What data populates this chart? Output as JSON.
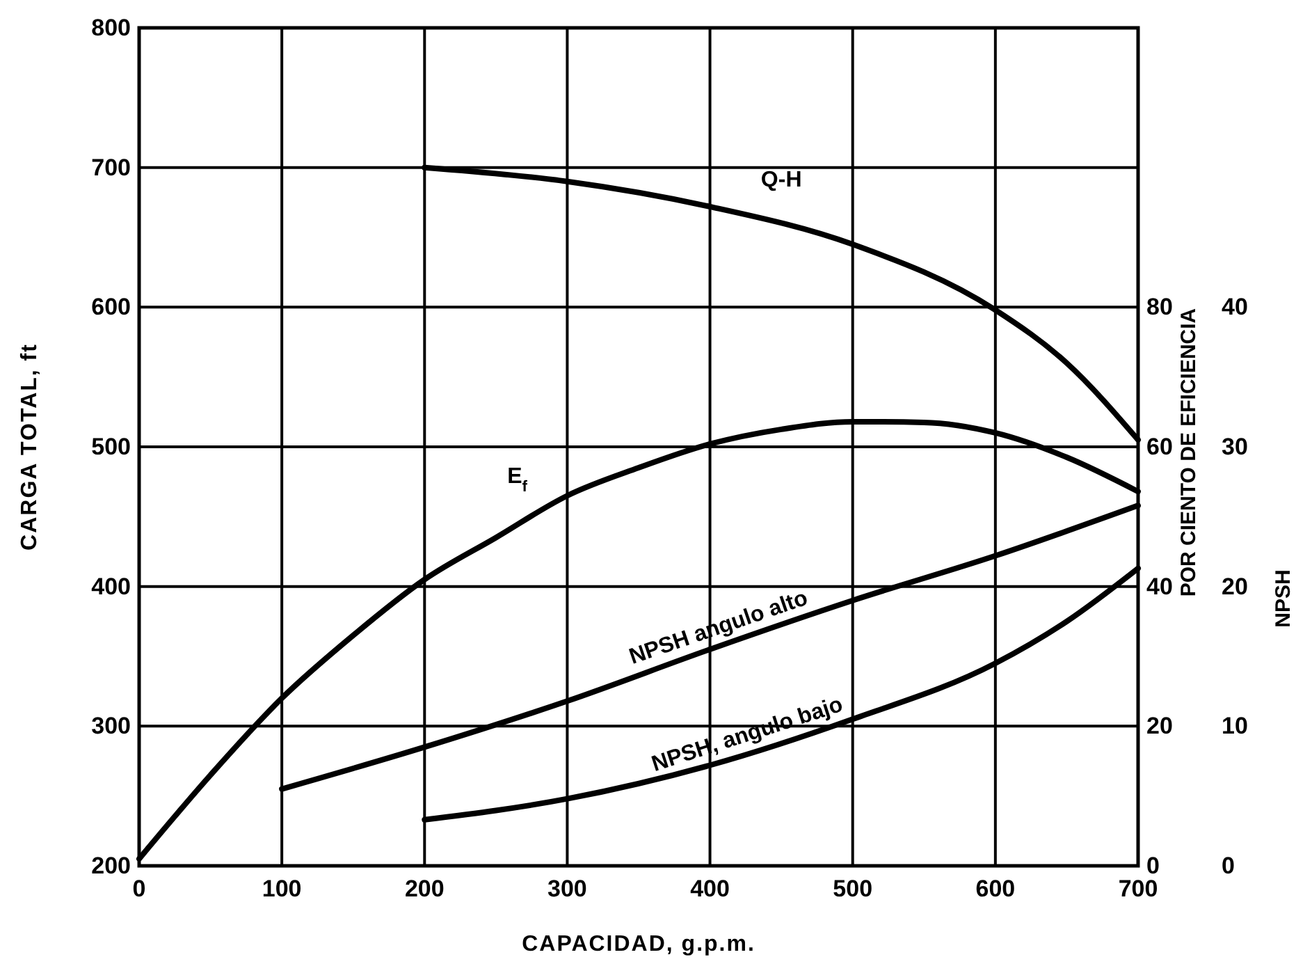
{
  "chart_data": {
    "type": "line",
    "xlabel": "CAPACIDAD, g.p.m.",
    "ylabel": "CARGA TOTAL, ft",
    "y2label": "POR CIENTO DE EFICIENCIA",
    "y3label": "NPSH",
    "xlim": [
      0,
      700
    ],
    "xticks": [
      0,
      100,
      200,
      300,
      400,
      500,
      600,
      700
    ],
    "ylim": [
      200,
      800
    ],
    "yticks": [
      200,
      300,
      400,
      500,
      600,
      700,
      800
    ],
    "y2lim": [
      0,
      120
    ],
    "y2ticks": [
      0,
      20,
      40,
      60,
      80
    ],
    "y3lim": [
      0,
      60
    ],
    "y3ticks": [
      0,
      10,
      20,
      30,
      40
    ],
    "grid": true,
    "legend": false,
    "marker": "none",
    "line_style": "solid",
    "series": [
      {
        "name": "Q-H",
        "color": "#000000",
        "x": [
          200,
          300,
          400,
          500,
          600,
          650,
          700
        ],
        "values": [
          700,
          690,
          672,
          645,
          598,
          560,
          505
        ]
      },
      {
        "name": "E$_{f}$",
        "color": "#000000",
        "axis": "y2",
        "x": [
          0,
          50,
          100,
          150,
          200,
          250,
          300,
          350,
          400,
          450,
          500,
          550,
          600,
          650,
          700
        ],
        "values": [
          1,
          13,
          24,
          33,
          41,
          47,
          53,
          57,
          60.4,
          62.5,
          63.6,
          63.5,
          62,
          58.5,
          53.6
        ]
      },
      {
        "name": "NPSH angulo alto",
        "color": "#000000",
        "axis": "y3",
        "x": [
          100,
          200,
          300,
          400,
          500,
          600,
          700
        ],
        "values": [
          5.5,
          8.5,
          11.8,
          15.5,
          19,
          22.2,
          25.8
        ]
      },
      {
        "name": "NPSH, angulo bajo",
        "color": "#000000",
        "axis": "y3",
        "x": [
          200,
          300,
          400,
          500,
          600,
          650,
          700
        ],
        "values": [
          3.3,
          4.8,
          7.2,
          10.5,
          14.5,
          17.5,
          21.3
        ]
      }
    ]
  }
}
